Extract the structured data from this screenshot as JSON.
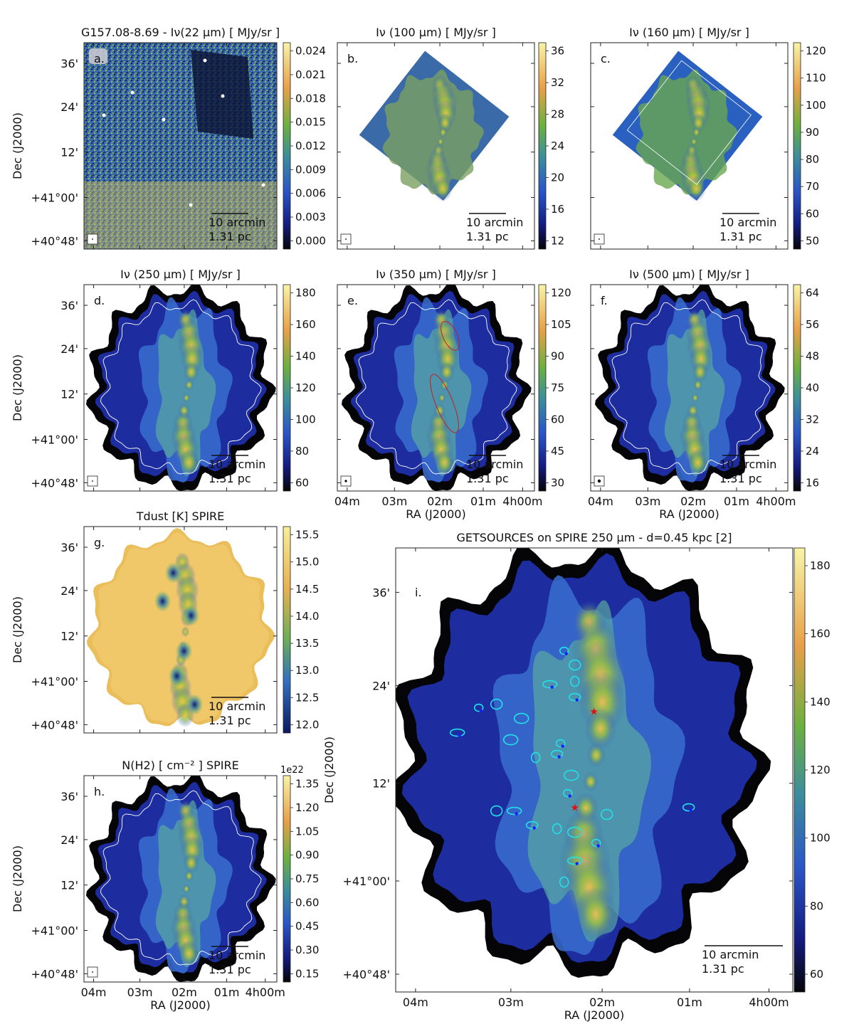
{
  "figure": {
    "ylabel": "Dec (J2000)",
    "xlabel": "RA (J2000)",
    "dec_ticks": [
      "36'",
      "24'",
      "12'",
      "+41°00'",
      "+40°48'"
    ],
    "ra_ticks": [
      "04m",
      "03m",
      "02m",
      "01m",
      "4h00m"
    ],
    "scalebar_arcmin": "10 arcmin",
    "scalebar_pc": "1.31 pc",
    "exponent_label": "1e22",
    "colors": {
      "low": "#050508",
      "blue": "#1a2fb0",
      "mid_blue": "#3a6fd0",
      "green": "#66b040",
      "orange": "#eaa040",
      "high": "#f7ef9a",
      "source_ellipse": "#22e0e8",
      "source_marker": "#1a1aff",
      "red_contour": "#c02020",
      "star": "#e01010",
      "outline": "#ffffff"
    }
  },
  "panels": [
    {
      "key": "a",
      "letter": "a.",
      "title": "G157.08-8.69 - Iν(22 μm)  [ MJy/sr ]",
      "colorbar_ticks": [
        "0.024",
        "0.021",
        "0.018",
        "0.015",
        "0.012",
        "0.009",
        "0.006",
        "0.003",
        "0.000"
      ]
    },
    {
      "key": "b",
      "letter": "b.",
      "title": "Iν (100 μm) [ MJy/sr ]",
      "colorbar_ticks": [
        "36",
        "32",
        "28",
        "24",
        "20",
        "16",
        "12"
      ]
    },
    {
      "key": "c",
      "letter": "c.",
      "title": "Iν (160 μm) [ MJy/sr ]",
      "colorbar_ticks": [
        "120",
        "110",
        "100",
        "90",
        "80",
        "70",
        "60",
        "50"
      ]
    },
    {
      "key": "d",
      "letter": "d.",
      "title": "Iν (250 μm) [ MJy/sr ]",
      "colorbar_ticks": [
        "180",
        "160",
        "140",
        "120",
        "100",
        "80",
        "60"
      ]
    },
    {
      "key": "e",
      "letter": "e.",
      "title": "Iν (350 μm) [ MJy/sr ]",
      "colorbar_ticks": [
        "120",
        "105",
        "90",
        "75",
        "60",
        "45",
        "30"
      ]
    },
    {
      "key": "f",
      "letter": "f.",
      "title": "Iν (500 μm) [ MJy/sr ]",
      "colorbar_ticks": [
        "64",
        "56",
        "48",
        "40",
        "32",
        "24",
        "16"
      ]
    },
    {
      "key": "g",
      "letter": "g.",
      "title": "Tdust [K] SPIRE",
      "colorbar_ticks": [
        "15.5",
        "15.0",
        "14.5",
        "14.0",
        "13.5",
        "13.0",
        "12.5",
        "12.0"
      ]
    },
    {
      "key": "h",
      "letter": "h.",
      "title": "N(H2) [ cm⁻² ] SPIRE",
      "colorbar_ticks": [
        "1.35",
        "1.20",
        "1.05",
        "0.90",
        "0.75",
        "0.60",
        "0.45",
        "0.30",
        "0.15"
      ]
    },
    {
      "key": "i",
      "letter": "i.",
      "title": "GETSOURCES on SPIRE 250 μm  -  d=0.45 kpc [2]",
      "colorbar_ticks": [
        "180",
        "160",
        "140",
        "120",
        "100",
        "80",
        "60"
      ]
    }
  ]
}
